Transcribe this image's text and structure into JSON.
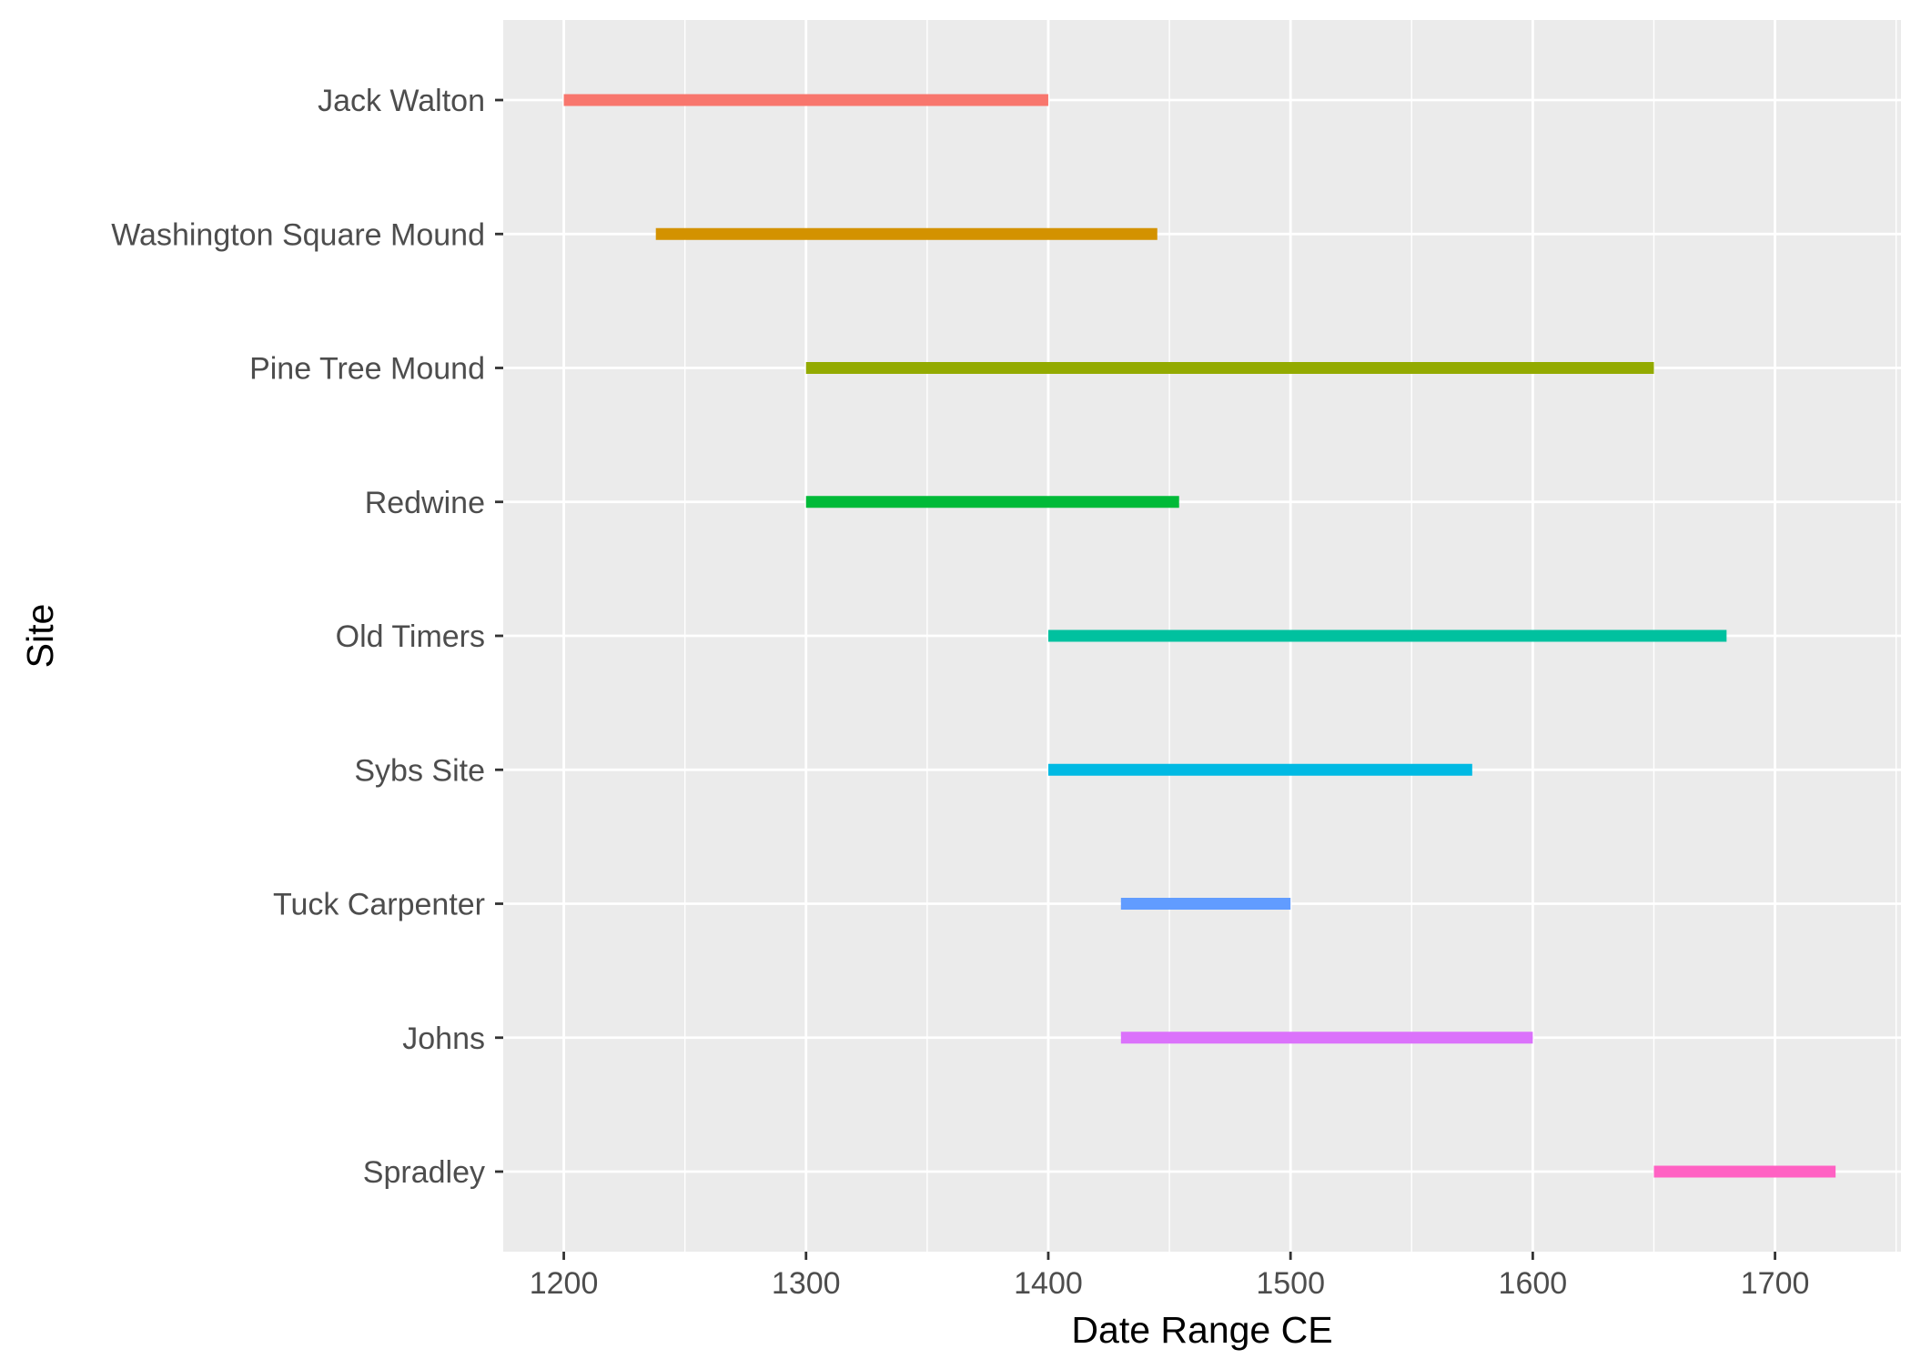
{
  "chart_data": {
    "type": "range-bar",
    "xlabel": "Date Range CE",
    "ylabel": "Site",
    "xlim": [
      1175,
      1752
    ],
    "x_ticks": [
      1200,
      1300,
      1400,
      1500,
      1600,
      1700
    ],
    "x_tick_labels": [
      "1200",
      "1300",
      "1400",
      "1500",
      "1600",
      "1700"
    ],
    "grid": true,
    "legend": "none",
    "panel_background": "#ebebeb",
    "grid_color": "#ffffff",
    "categories": [
      "Jack Walton",
      "Washington Square Mound",
      "Pine Tree Mound",
      "Redwine",
      "Old Timers",
      "Sybs Site",
      "Tuck Carpenter",
      "Johns",
      "Spradley"
    ],
    "ranges": [
      {
        "site": "Jack Walton",
        "start": 1200,
        "end": 1400,
        "color": "#F8766D"
      },
      {
        "site": "Washington Square Mound",
        "start": 1238,
        "end": 1445,
        "color": "#D39200"
      },
      {
        "site": "Pine Tree Mound",
        "start": 1300,
        "end": 1650,
        "color": "#93AA00"
      },
      {
        "site": "Redwine",
        "start": 1300,
        "end": 1454,
        "color": "#00BA38"
      },
      {
        "site": "Old Timers",
        "start": 1400,
        "end": 1680,
        "color": "#00C19F"
      },
      {
        "site": "Sybs Site",
        "start": 1400,
        "end": 1575,
        "color": "#00B9E3"
      },
      {
        "site": "Tuck Carpenter",
        "start": 1430,
        "end": 1500,
        "color": "#619CFF"
      },
      {
        "site": "Johns",
        "start": 1430,
        "end": 1600,
        "color": "#DB72FB"
      },
      {
        "site": "Spradley",
        "start": 1650,
        "end": 1725,
        "color": "#FF61C3"
      }
    ]
  }
}
